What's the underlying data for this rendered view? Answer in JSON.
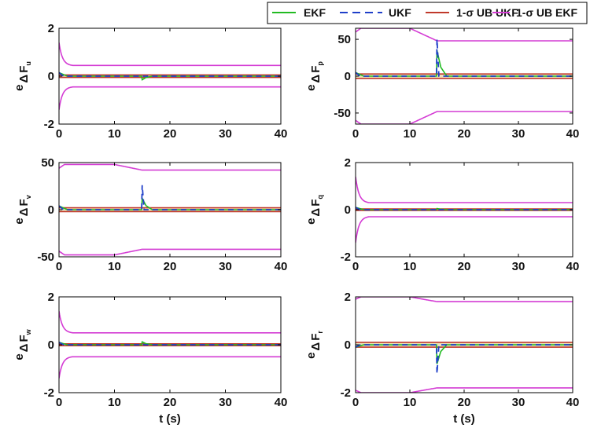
{
  "colors": {
    "ekf": "#22bb22",
    "ukf": "#1f3fc9",
    "ub_ukf": "#c0392b",
    "ub_ekf": "#d43cd4",
    "band_fill": "#e6d9a6"
  },
  "legend": {
    "entries": [
      {
        "key": "ekf",
        "label": "EKF",
        "style": "solid"
      },
      {
        "key": "ukf",
        "label": "UKF",
        "style": "dashed"
      },
      {
        "key": "ub_ukf",
        "label": "1-σ UB UKF",
        "style": "solid"
      },
      {
        "key": "ub_ekf",
        "label": "1-σ UB EKF",
        "style": "solid"
      }
    ]
  },
  "chart_data": [
    {
      "type": "line",
      "ylabel_main": "e",
      "ylabel_delta": "Δ",
      "ylabel_F": "F",
      "ylabel_sub": "u",
      "xlabel": "",
      "xlim": [
        0,
        40
      ],
      "ylim": [
        -2,
        2
      ],
      "xticks": [
        "0",
        "10",
        "20",
        "30",
        "40"
      ],
      "yticks": [
        "-2",
        "0",
        "2"
      ],
      "series": {
        "ub_ekf": {
          "start": 1.4,
          "end": 0.45
        },
        "ub_ukf": {
          "value": 0.05
        },
        "ekf_spike": {
          "t": 15,
          "value": -0.15
        },
        "ukf_spike": {
          "t": 15,
          "value": 0.0
        },
        "initial_error": 0.15
      }
    },
    {
      "type": "line",
      "ylabel_main": "e",
      "ylabel_delta": "Δ",
      "ylabel_F": "F",
      "ylabel_sub": "p",
      "xlabel": "",
      "xlim": [
        0,
        40
      ],
      "ylim": [
        -65,
        65
      ],
      "xticks": [
        "0",
        "10",
        "20",
        "30",
        "40"
      ],
      "yticks": [
        "-50",
        "0",
        "50"
      ],
      "series": {
        "ub_ekf": {
          "start": 60,
          "peak": 65,
          "end": 48
        },
        "ub_ukf": {
          "value": 3
        },
        "ekf_spike": {
          "t": 15,
          "value": 35
        },
        "ukf_spike": {
          "t": 15,
          "value": 50
        },
        "initial_error": 5
      }
    },
    {
      "type": "line",
      "ylabel_main": "e",
      "ylabel_delta": "Δ",
      "ylabel_F": "F",
      "ylabel_sub": "v",
      "xlabel": "",
      "xlim": [
        0,
        40
      ],
      "ylim": [
        -50,
        50
      ],
      "xticks": [
        "0",
        "10",
        "20",
        "30",
        "40"
      ],
      "yticks": [
        "-50",
        "0",
        "50"
      ],
      "series": {
        "ub_ekf": {
          "start": 44,
          "peak": 48,
          "end": 42
        },
        "ub_ukf": {
          "value": 2
        },
        "ekf_spike": {
          "t": 15,
          "value": 12
        },
        "ukf_spike": {
          "t": 15,
          "value": 26
        },
        "initial_error": 4
      }
    },
    {
      "type": "line",
      "ylabel_main": "e",
      "ylabel_delta": "Δ",
      "ylabel_F": "F",
      "ylabel_sub": "q",
      "xlabel": "",
      "xlim": [
        0,
        40
      ],
      "ylim": [
        -2,
        2
      ],
      "xticks": [
        "0",
        "10",
        "20",
        "30",
        "40"
      ],
      "yticks": [
        "-2",
        "0",
        "2"
      ],
      "series": {
        "ub_ekf": {
          "start": 1.4,
          "end": 0.3
        },
        "ub_ukf": {
          "value": 0.03
        },
        "ekf_spike": {
          "t": 15,
          "value": 0.05
        },
        "ukf_spike": {
          "t": 15,
          "value": 0.06
        },
        "initial_error": 0.1
      }
    },
    {
      "type": "line",
      "ylabel_main": "e",
      "ylabel_delta": "Δ",
      "ylabel_F": "F",
      "ylabel_sub": "w",
      "xlabel": "t (s)",
      "xlim": [
        0,
        40
      ],
      "ylim": [
        -2,
        2
      ],
      "xticks": [
        "0",
        "10",
        "20",
        "30",
        "40"
      ],
      "yticks": [
        "-2",
        "0",
        "2"
      ],
      "series": {
        "ub_ekf": {
          "start": 1.4,
          "end": 0.5
        },
        "ub_ukf": {
          "value": 0.04
        },
        "ekf_spike": {
          "t": 15,
          "value": 0.12
        },
        "ukf_spike": {
          "t": 15,
          "value": 0.03
        },
        "initial_error": 0.1
      }
    },
    {
      "type": "line",
      "ylabel_main": "e",
      "ylabel_delta": "Δ",
      "ylabel_F": "F",
      "ylabel_sub": "r",
      "xlabel": "t (s)",
      "xlim": [
        0,
        40
      ],
      "ylim": [
        -2,
        2
      ],
      "xticks": [
        "0",
        "10",
        "20",
        "30",
        "40"
      ],
      "yticks": [
        "-2",
        "0",
        "2"
      ],
      "series": {
        "ub_ekf": {
          "start": 1.9,
          "peak": 2.0,
          "end": 1.8
        },
        "ub_ukf": {
          "value": 0.1
        },
        "ekf_spike": {
          "t": 15,
          "value": -0.8
        },
        "ukf_spike": {
          "t": 15,
          "value": -1.2
        },
        "initial_error": -0.1
      }
    }
  ]
}
